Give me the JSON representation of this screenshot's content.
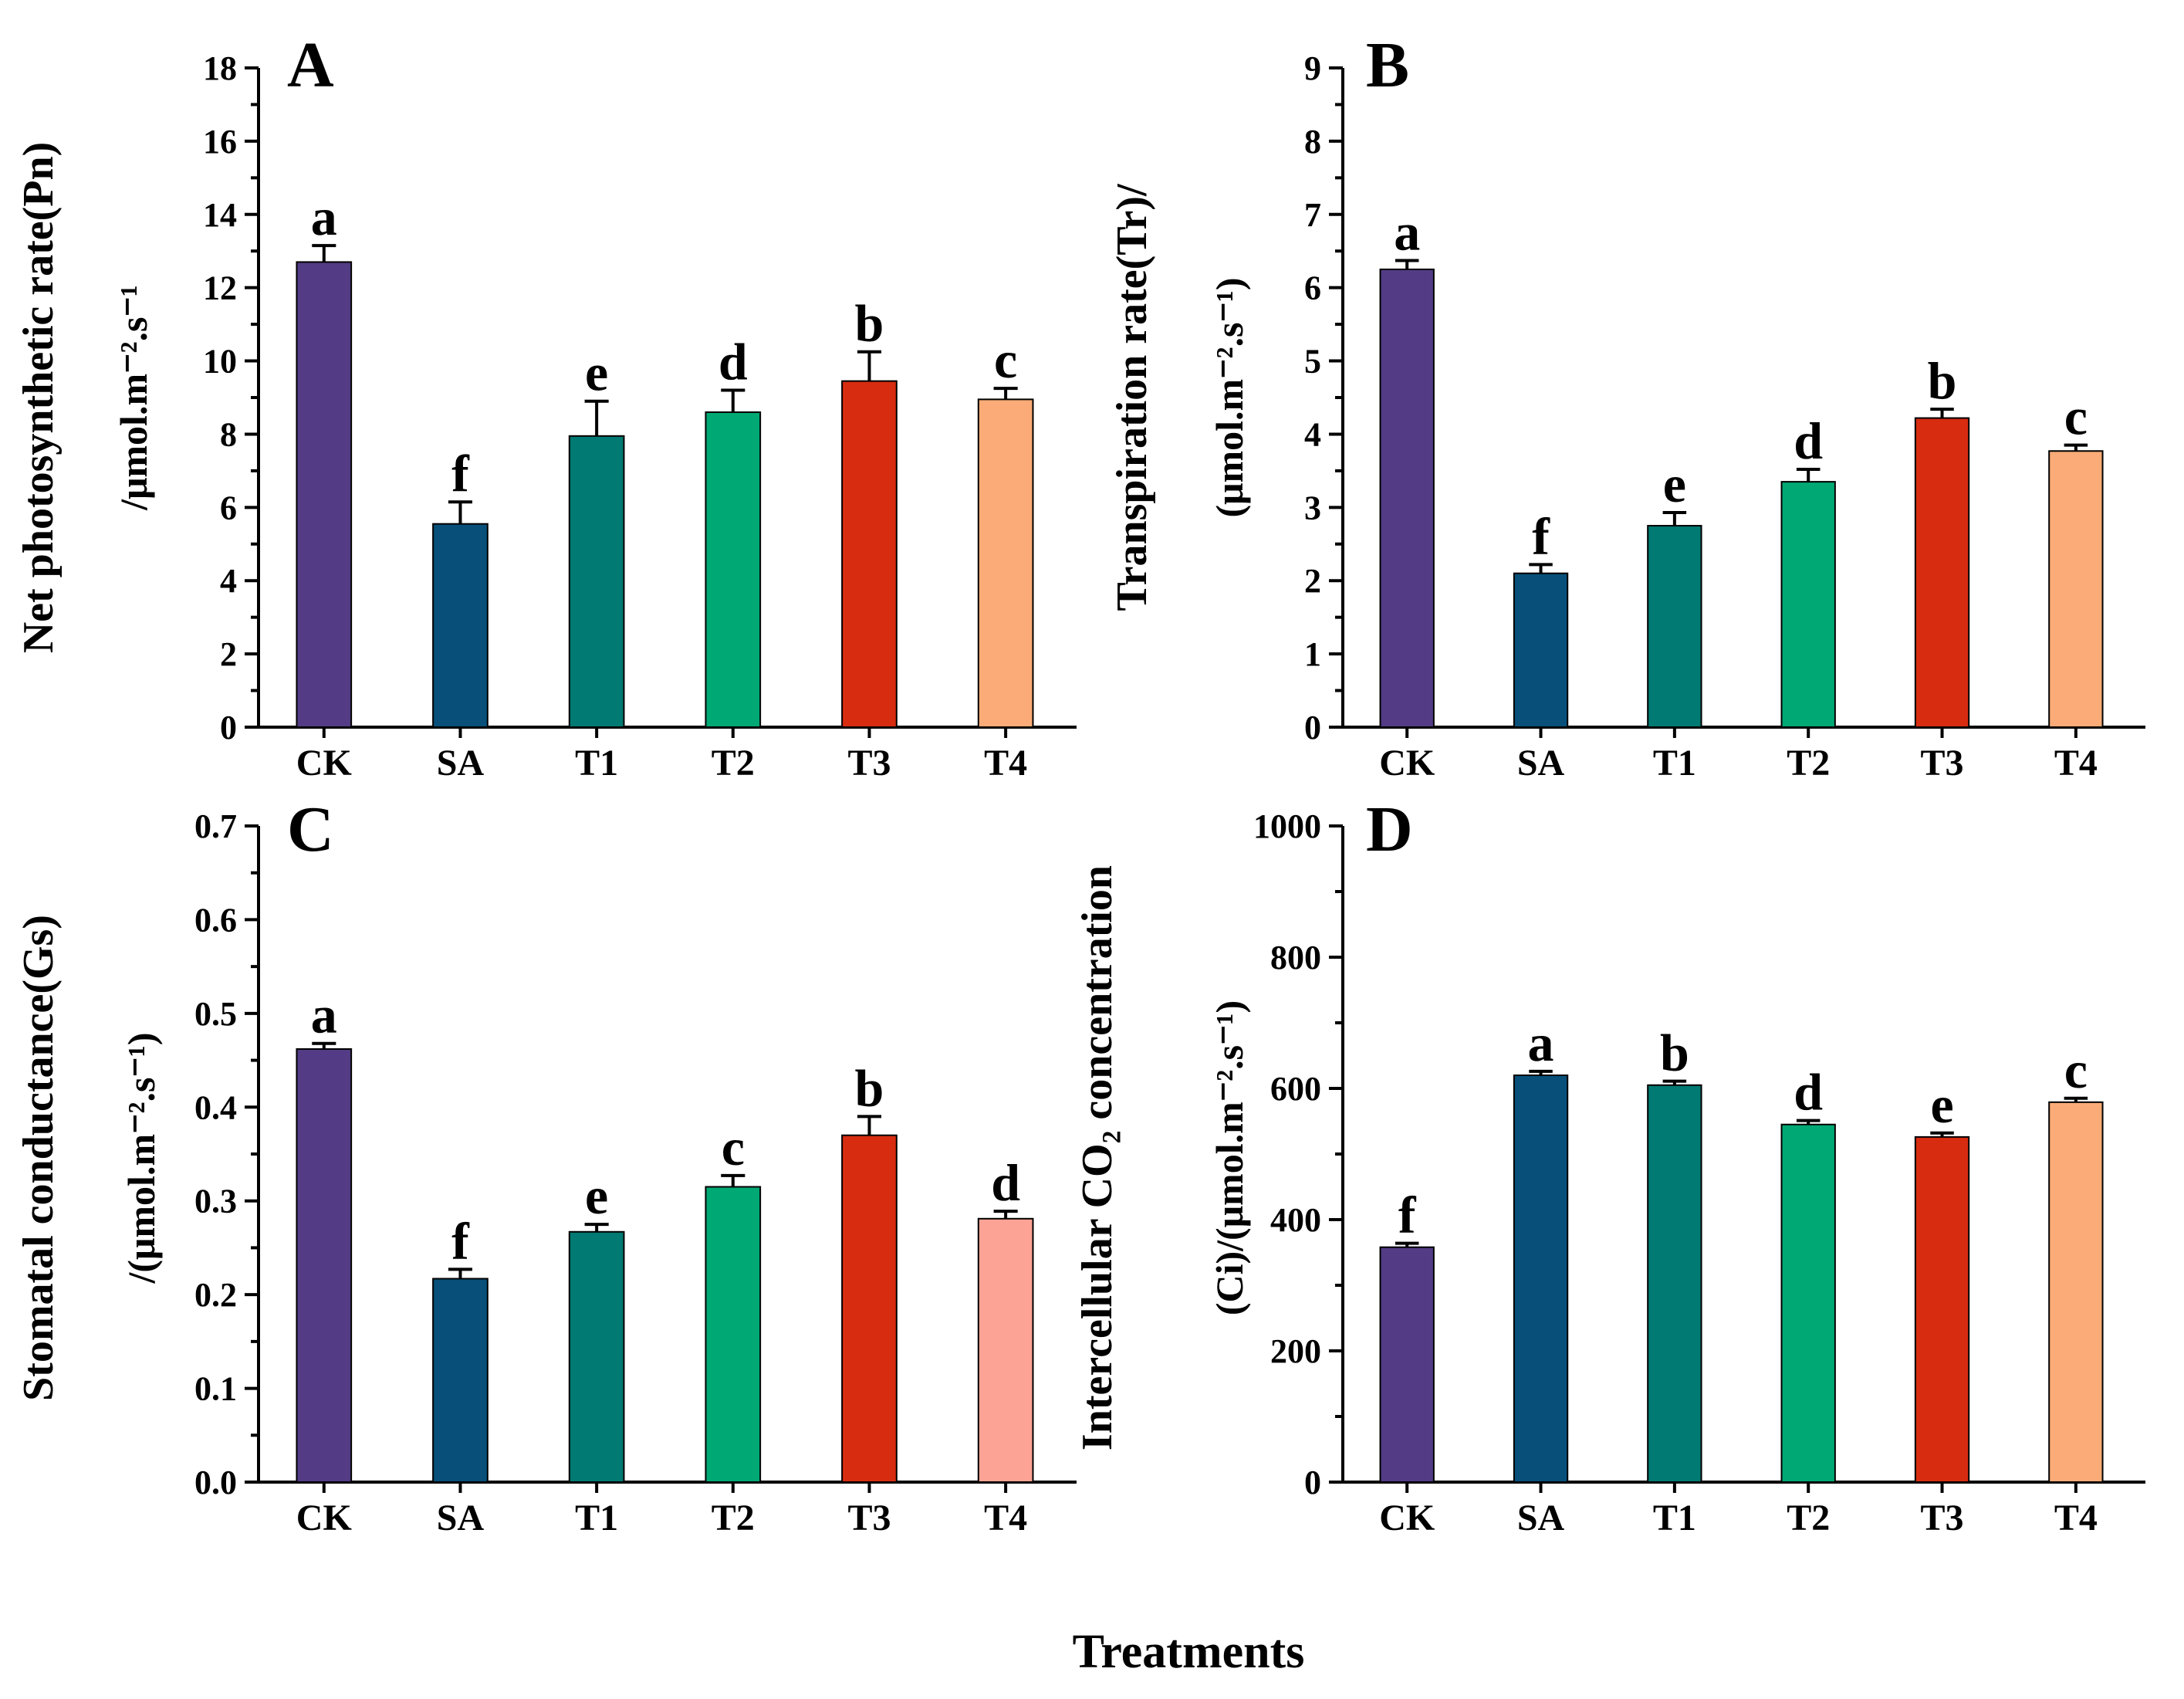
{
  "chart_data": [
    {
      "type": "bar",
      "panel": "A",
      "categories": [
        "CK",
        "SA",
        "T1",
        "T2",
        "T3",
        "T4"
      ],
      "values": [
        12.7,
        5.55,
        7.95,
        8.6,
        9.45,
        8.95
      ],
      "errors": [
        0.45,
        0.6,
        0.95,
        0.6,
        0.8,
        0.3
      ],
      "sig_letters": [
        "a",
        "f",
        "e",
        "d",
        "b",
        "c"
      ],
      "colors": [
        "#533c85",
        "#08507a",
        "#007a72",
        "#00a874",
        "#d72c10",
        "#fbab77"
      ],
      "ylabel_line1": "Net photosynthetic rate(Pn)",
      "ylabel_line2": "/μmol.m⁻².s⁻¹",
      "ylim": [
        0,
        18
      ],
      "yticks": [
        0,
        2,
        4,
        6,
        8,
        10,
        12,
        14,
        16,
        18
      ],
      "tick_labels": [
        "0",
        "2",
        "4",
        "6",
        "8",
        "10",
        "12",
        "14",
        "16",
        "18"
      ]
    },
    {
      "type": "bar",
      "panel": "B",
      "categories": [
        "CK",
        "SA",
        "T1",
        "T2",
        "T3",
        "T4"
      ],
      "values": [
        6.25,
        2.1,
        2.75,
        3.35,
        4.22,
        3.77
      ],
      "errors": [
        0.12,
        0.12,
        0.18,
        0.17,
        0.12,
        0.08
      ],
      "sig_letters": [
        "a",
        "f",
        "e",
        "d",
        "b",
        "c"
      ],
      "colors": [
        "#533c85",
        "#08507a",
        "#007a72",
        "#00a874",
        "#d72c10",
        "#fbab77"
      ],
      "ylabel_line1": "Transpiration rate(Tr)/",
      "ylabel_line2": "(μmol.m⁻².s⁻¹)",
      "ylim": [
        0,
        9
      ],
      "yticks": [
        0,
        1,
        2,
        3,
        4,
        5,
        6,
        7,
        8,
        9
      ],
      "tick_labels": [
        "0",
        "1",
        "2",
        "3",
        "4",
        "5",
        "6",
        "7",
        "8",
        "9"
      ]
    },
    {
      "type": "bar",
      "panel": "C",
      "categories": [
        "CK",
        "SA",
        "T1",
        "T2",
        "T3",
        "T4"
      ],
      "values": [
        0.462,
        0.217,
        0.267,
        0.315,
        0.37,
        0.281
      ],
      "errors": [
        0.006,
        0.01,
        0.008,
        0.012,
        0.02,
        0.008
      ],
      "sig_letters": [
        "a",
        "f",
        "e",
        "c",
        "b",
        "d"
      ],
      "colors": [
        "#533c85",
        "#08507a",
        "#007a72",
        "#00a874",
        "#d72c10",
        "#fca395"
      ],
      "ylabel_line1": "Stomatal conductance(Gs)",
      "ylabel_line2": "/(μmol.m⁻².s⁻¹)",
      "ylim": [
        0,
        0.7
      ],
      "yticks": [
        0,
        0.1,
        0.2,
        0.3,
        0.4,
        0.5,
        0.6,
        0.7
      ],
      "tick_labels": [
        "0.0",
        "0.1",
        "0.2",
        "0.3",
        "0.4",
        "0.5",
        "0.6",
        "0.7"
      ]
    },
    {
      "type": "bar",
      "panel": "D",
      "categories": [
        "CK",
        "SA",
        "T1",
        "T2",
        "T3",
        "T4"
      ],
      "values": [
        358,
        620,
        605,
        545,
        526,
        579
      ],
      "errors": [
        6,
        6,
        6,
        6,
        6,
        6
      ],
      "sig_letters": [
        "f",
        "a",
        "b",
        "d",
        "e",
        "c"
      ],
      "colors": [
        "#533c85",
        "#08507a",
        "#007a72",
        "#00a874",
        "#d72c10",
        "#fbab77"
      ],
      "ylabel_line1": "Intercellular CO₂ concentration",
      "ylabel_line2": "(Ci)/(μmol.m⁻².s⁻¹)",
      "ylim": [
        0,
        1000
      ],
      "yticks": [
        0,
        200,
        400,
        600,
        800,
        1000
      ],
      "tick_labels": [
        "0",
        "200",
        "400",
        "600",
        "800",
        "1000"
      ]
    }
  ],
  "xlabel": "Treatments"
}
